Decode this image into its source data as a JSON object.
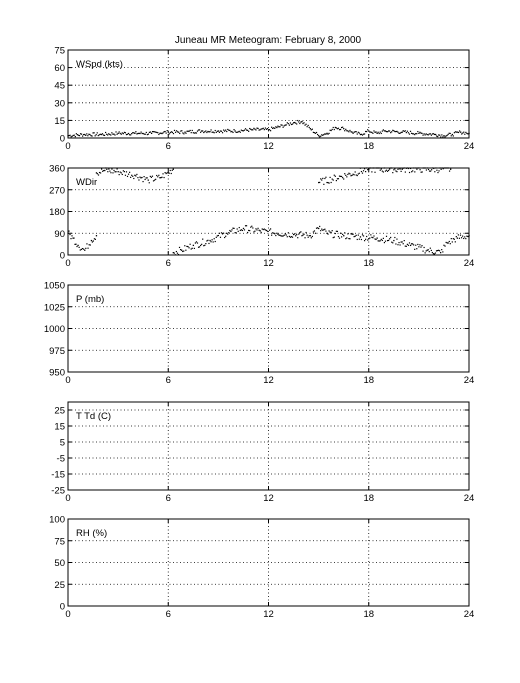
{
  "figure": {
    "title": "Juneau MR Meteogram:  February  8, 2000"
  },
  "chart_data": [
    {
      "type": "scatter",
      "label": "WSpd (kts)",
      "xlim": [
        0,
        24
      ],
      "ylim": [
        0,
        75
      ],
      "xticks": [
        "0",
        "6",
        "12",
        "18",
        "24"
      ],
      "yticks": [
        "0",
        "15",
        "30",
        "45",
        "60",
        "75"
      ],
      "grid": "dotted",
      "series": [
        {
          "x": [
            0,
            1,
            2,
            3,
            4,
            5,
            6,
            7,
            8,
            9,
            10,
            11,
            12,
            12.5,
            13,
            13.5,
            14,
            14.5,
            15,
            15.5,
            16,
            16.5,
            17,
            17.5,
            18,
            18.5,
            19,
            20,
            21,
            22,
            22.5,
            23,
            23.5,
            24
          ],
          "values": [
            2,
            3,
            3,
            4,
            4,
            4,
            5,
            5,
            6,
            6,
            6,
            7,
            7,
            9,
            11,
            13,
            14,
            8,
            2,
            4,
            9,
            8,
            5,
            3,
            6,
            4,
            6,
            5,
            4,
            3,
            2,
            3,
            5,
            4
          ]
        }
      ]
    },
    {
      "type": "scatter",
      "label": "WDir",
      "xlim": [
        0,
        24
      ],
      "ylim": [
        0,
        360
      ],
      "xticks": [
        "0",
        "6",
        "12",
        "18",
        "24"
      ],
      "yticks": [
        "0",
        "90",
        "180",
        "270",
        "360"
      ],
      "grid": "dotted",
      "series": [
        {
          "x": [
            0,
            0.3,
            0.6,
            1.0,
            1.4,
            1.7
          ],
          "values": [
            90,
            70,
            40,
            20,
            60,
            80
          ]
        },
        {
          "x": [
            1.7,
            2.2,
            3,
            4,
            4.8,
            5.5,
            6.0,
            6.3
          ],
          "values": [
            340,
            350,
            345,
            330,
            310,
            320,
            340,
            355
          ]
        },
        {
          "x": [
            6.3,
            6.8,
            7.5,
            8.5,
            9.5,
            10.5,
            11.5,
            12.5,
            13.5,
            14.5,
            15.0,
            15.5,
            16.5,
            17.5,
            18.5,
            19.5,
            20.5,
            21.5,
            22.3,
            22.7,
            23.3,
            24
          ],
          "values": [
            10,
            20,
            40,
            60,
            90,
            110,
            100,
            90,
            85,
            80,
            110,
            90,
            80,
            75,
            70,
            60,
            40,
            20,
            10,
            50,
            70,
            80
          ]
        },
        {
          "x": [
            15,
            18,
            20,
            22.9
          ],
          "values": [
            300,
            355,
            355,
            355
          ]
        }
      ]
    },
    {
      "type": "line",
      "label": "P (mb)",
      "xlim": [
        0,
        24
      ],
      "ylim": [
        950,
        1050
      ],
      "xticks": [
        "0",
        "6",
        "12",
        "18",
        "24"
      ],
      "yticks": [
        "950",
        "975",
        "1000",
        "1025",
        "1050"
      ],
      "grid": "dotted",
      "series": []
    },
    {
      "type": "line",
      "label": "T Td (C)",
      "xlim": [
        0,
        24
      ],
      "ylim": [
        -25,
        30
      ],
      "xticks": [
        "0",
        "6",
        "12",
        "18",
        "24"
      ],
      "yticks": [
        "-25",
        "-15",
        "-5",
        "5",
        "15",
        "25"
      ],
      "grid": "dotted",
      "series": []
    },
    {
      "type": "line",
      "label": "RH (%)",
      "xlim": [
        0,
        24
      ],
      "ylim": [
        0,
        100
      ],
      "xticks": [
        "0",
        "6",
        "12",
        "18",
        "24"
      ],
      "yticks": [
        "0",
        "25",
        "50",
        "75",
        "100"
      ],
      "grid": "dotted",
      "series": []
    }
  ]
}
